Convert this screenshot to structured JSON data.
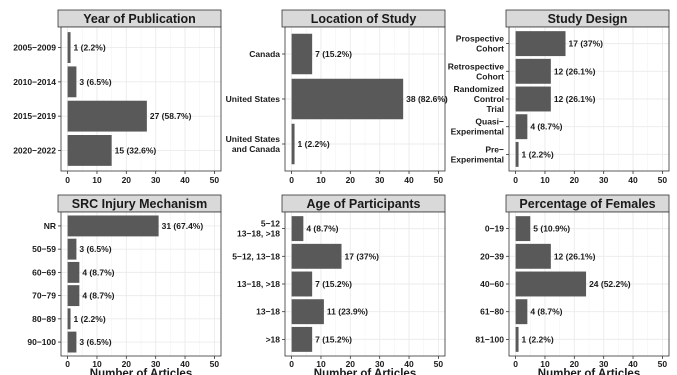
{
  "chart_data": [
    {
      "type": "bar",
      "orientation": "horizontal",
      "title": "Year of Publication",
      "categories": [
        "2005−2009",
        "2010−2014",
        "2015−2019",
        "2020−2022"
      ],
      "values": [
        1,
        3,
        27,
        15
      ],
      "data_labels": [
        "1 (2.2%)",
        "3 (6.5%)",
        "27 (58.7%)",
        "15 (32.6%)"
      ],
      "xlim": [
        0,
        50
      ],
      "xticks": [
        0,
        10,
        20,
        30,
        40,
        50
      ],
      "xlabel": ""
    },
    {
      "type": "bar",
      "orientation": "horizontal",
      "title": "Location of Study",
      "categories": [
        "Canada",
        "United States",
        "United States\nand Canada"
      ],
      "values": [
        7,
        38,
        1
      ],
      "data_labels": [
        "7 (15.2%)",
        "38 (82.6%)",
        "1 (2.2%)"
      ],
      "xlim": [
        0,
        50
      ],
      "xticks": [
        0,
        10,
        20,
        30,
        40,
        50
      ],
      "xlabel": ""
    },
    {
      "type": "bar",
      "orientation": "horizontal",
      "title": "Study Design",
      "categories": [
        "Prospective\nCohort",
        "Retrospective\nCohort",
        "Randomized\nControl\nTrial",
        "Quasi−\nExperimental",
        "Pre−\nExperimental"
      ],
      "values": [
        17,
        12,
        12,
        4,
        1
      ],
      "data_labels": [
        "17 (37%)",
        "12 (26.1%)",
        "12 (26.1%)",
        "4 (8.7%)",
        "1 (2.2%)"
      ],
      "xlim": [
        0,
        50
      ],
      "xticks": [
        0,
        10,
        20,
        30,
        40,
        50
      ],
      "xlabel": ""
    },
    {
      "type": "bar",
      "orientation": "horizontal",
      "title": "SRC Injury Mechanism",
      "categories": [
        "NR",
        "50−59",
        "60−69",
        "70−79",
        "80−89",
        "90−100"
      ],
      "values": [
        31,
        3,
        4,
        4,
        1,
        3
      ],
      "data_labels": [
        "31 (67.4%)",
        "3 (6.5%)",
        "4 (8.7%)",
        "4 (8.7%)",
        "1 (2.2%)",
        "3 (6.5%)"
      ],
      "xlim": [
        0,
        50
      ],
      "xticks": [
        0,
        10,
        20,
        30,
        40,
        50
      ],
      "xlabel": "Number of Articles"
    },
    {
      "type": "bar",
      "orientation": "horizontal",
      "title": "Age of Participants",
      "categories": [
        "5−12\n13−18, >18",
        "5−12, 13−18",
        "13−18, >18",
        "13−18",
        ">18"
      ],
      "values": [
        4,
        17,
        7,
        11,
        7
      ],
      "data_labels": [
        "4 (8.7%)",
        "17 (37%)",
        "7 (15.2%)",
        "11 (23.9%)",
        "7 (15.2%)"
      ],
      "xlim": [
        0,
        50
      ],
      "xticks": [
        0,
        10,
        20,
        30,
        40,
        50
      ],
      "xlabel": "Number of Articles"
    },
    {
      "type": "bar",
      "orientation": "horizontal",
      "title": "Percentage of Females",
      "categories": [
        "0−19",
        "20−39",
        "40−60",
        "61−80",
        "81−100"
      ],
      "values": [
        5,
        12,
        24,
        4,
        1
      ],
      "data_labels": [
        "5 (10.9%)",
        "12 (26.1%)",
        "24 (52.2%)",
        "4 (8.7%)",
        "1 (2.2%)"
      ],
      "xlim": [
        0,
        50
      ],
      "xticks": [
        0,
        10,
        20,
        30,
        40,
        50
      ],
      "xlabel": "Number of Articles"
    }
  ]
}
